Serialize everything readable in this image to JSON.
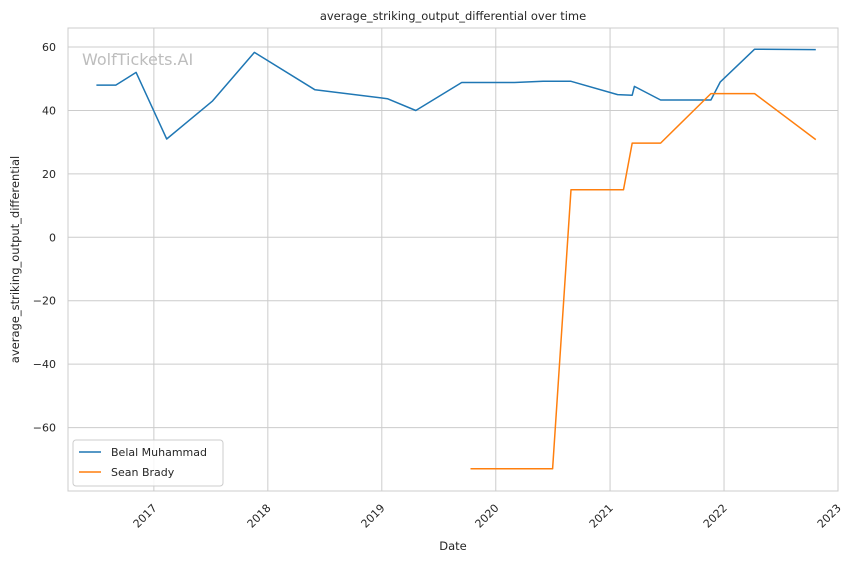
{
  "chart_data": {
    "type": "line",
    "title": "average_striking_output_differential over time",
    "xlabel": "Date",
    "ylabel": "average_striking_output_differential",
    "watermark": "WolfTickets.AI",
    "x_ticks": [
      "2017",
      "2018",
      "2019",
      "2020",
      "2021",
      "2022",
      "2023"
    ],
    "y_ticks": [
      60,
      40,
      20,
      0,
      -20,
      -40,
      -60
    ],
    "xlim": [
      "2016-04-01",
      "2023-01-01"
    ],
    "ylim": [
      -80,
      66
    ],
    "grid": true,
    "legend_position": "lower-left",
    "series": [
      {
        "name": "Belal Muhammad",
        "color": "#1f77b4",
        "points": [
          [
            "2016-07-01",
            48
          ],
          [
            "2016-09-01",
            48
          ],
          [
            "2016-11-05",
            52
          ],
          [
            "2017-02-11",
            31
          ],
          [
            "2017-07-08",
            43
          ],
          [
            "2017-11-19",
            58.3
          ],
          [
            "2018-06-01",
            46.5
          ],
          [
            "2019-01-19",
            43.7
          ],
          [
            "2019-04-20",
            40
          ],
          [
            "2019-09-14",
            48.8
          ],
          [
            "2020-03-01",
            48.8
          ],
          [
            "2020-06-01",
            49.2
          ],
          [
            "2020-08-29",
            49.2
          ],
          [
            "2021-01-25",
            45
          ],
          [
            "2021-03-13",
            44.8
          ],
          [
            "2021-03-20",
            47.6
          ],
          [
            "2021-06-12",
            43.3
          ],
          [
            "2021-11-20",
            43.3
          ],
          [
            "2021-12-20",
            49
          ],
          [
            "2022-04-09",
            59.3
          ],
          [
            "2022-10-22",
            59.2
          ]
        ]
      },
      {
        "name": "Sean Brady",
        "color": "#ff7f0e",
        "points": [
          [
            "2019-10-12",
            -73
          ],
          [
            "2020-07-01",
            -73
          ],
          [
            "2020-08-29",
            15
          ],
          [
            "2021-02-13",
            15
          ],
          [
            "2021-03-13",
            29.7
          ],
          [
            "2021-06-12",
            29.7
          ],
          [
            "2021-11-20",
            45.3
          ],
          [
            "2022-04-09",
            45.3
          ],
          [
            "2022-10-22",
            30.8
          ]
        ]
      }
    ]
  }
}
